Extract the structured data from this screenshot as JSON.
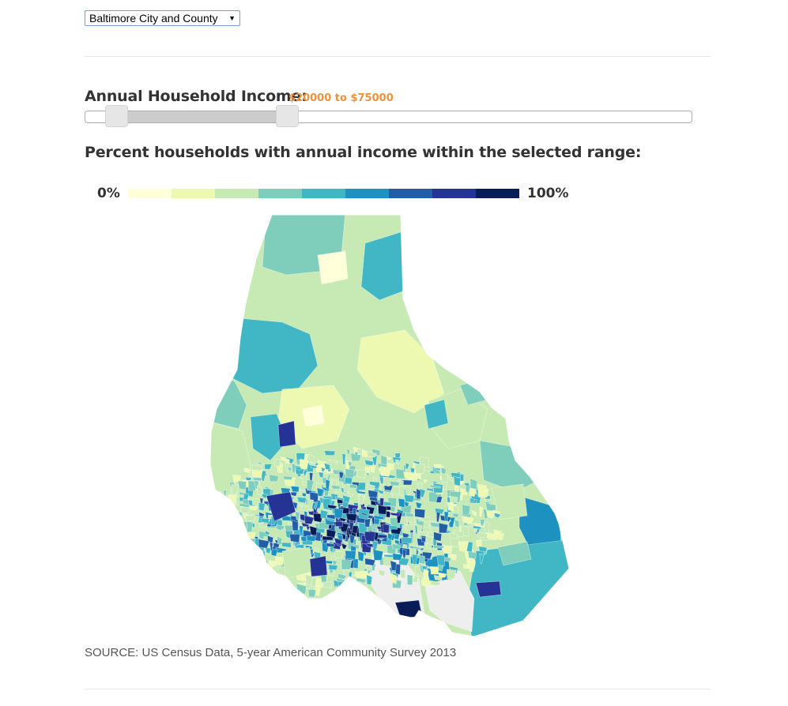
{
  "selector": {
    "value": "Baltimore City and County",
    "arrow": "▼"
  },
  "income": {
    "label": "Annual Household Income:",
    "range_text": "$20000 to $75000",
    "min": 20000,
    "max": 75000
  },
  "heading": "Percent households with annual income within the selected range:",
  "legend": {
    "min_label": "0%",
    "max_label": "100%",
    "colors": [
      "#ffffd9",
      "#edf8b1",
      "#c7e9b4",
      "#7fcdbb",
      "#41b6c4",
      "#1d91c0",
      "#225ea8",
      "#253494",
      "#081d58"
    ]
  },
  "source": "SOURCE: US Census Data, 5-year American Community Survey 2013"
}
